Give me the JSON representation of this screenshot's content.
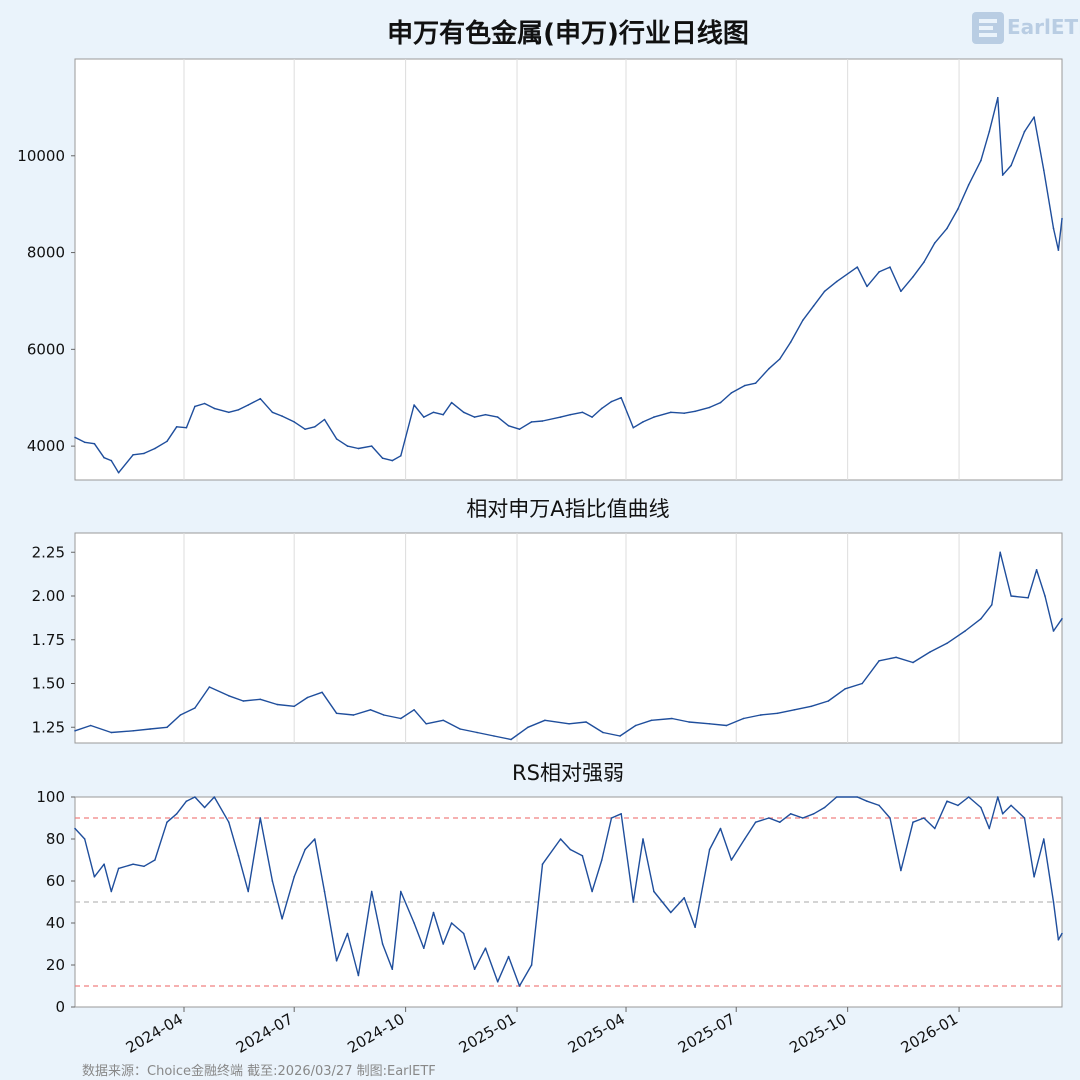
{
  "header": {
    "title": "申万有色金属(申万)行业日线图",
    "logo_text": "EarlETF"
  },
  "footer": {
    "source": "数据来源：Choice金融终端 截至:2026/03/27 制图:EarlETF"
  },
  "colors": {
    "line": "#1f4e9c",
    "background": "#eaf3fb",
    "panel": "#ffffff",
    "grid": "#dddddd",
    "ref_red": "#f08080",
    "ref_gray": "#bbbbbb"
  },
  "chart_data": [
    {
      "type": "line",
      "title": "申万有色金属(申万)行业日线图",
      "x_range": [
        "2024-01-02",
        "2026-03-27"
      ],
      "xticks": [
        "2024-04",
        "2024-07",
        "2024-10",
        "2025-01",
        "2025-04",
        "2025-07",
        "2025-10",
        "2026-01"
      ],
      "ylim": [
        3300,
        12000
      ],
      "yticks": [
        4000,
        6000,
        8000,
        10000
      ],
      "grid": "vertical",
      "series": [
        {
          "x": [
            "2024-01-02",
            "2024-01-10",
            "2024-01-18",
            "2024-01-26",
            "2024-02-01",
            "2024-02-07",
            "2024-02-19",
            "2024-02-28",
            "2024-03-08",
            "2024-03-18",
            "2024-03-26",
            "2024-04-03",
            "2024-04-10",
            "2024-04-18",
            "2024-04-26",
            "2024-05-08",
            "2024-05-16",
            "2024-05-24",
            "2024-06-03",
            "2024-06-13",
            "2024-06-21",
            "2024-07-01",
            "2024-07-10",
            "2024-07-18",
            "2024-07-26",
            "2024-08-05",
            "2024-08-14",
            "2024-08-23",
            "2024-09-03",
            "2024-09-12",
            "2024-09-20",
            "2024-09-27",
            "2024-10-08",
            "2024-10-16",
            "2024-10-24",
            "2024-11-01",
            "2024-11-08",
            "2024-11-18",
            "2024-11-27",
            "2024-12-06",
            "2024-12-16",
            "2024-12-25",
            "2025-01-03",
            "2025-01-13",
            "2025-01-22",
            "2025-02-06",
            "2025-02-14",
            "2025-02-24",
            "2025-03-04",
            "2025-03-12",
            "2025-03-20",
            "2025-03-28",
            "2025-04-07",
            "2025-04-15",
            "2025-04-24",
            "2025-05-08",
            "2025-05-19",
            "2025-05-28",
            "2025-06-09",
            "2025-06-18",
            "2025-06-27",
            "2025-07-08",
            "2025-07-17",
            "2025-07-28",
            "2025-08-06",
            "2025-08-15",
            "2025-08-25",
            "2025-09-03",
            "2025-09-12",
            "2025-09-22",
            "2025-10-09",
            "2025-10-17",
            "2025-10-27",
            "2025-11-05",
            "2025-11-14",
            "2025-11-24",
            "2025-12-03",
            "2025-12-12",
            "2025-12-22",
            "2025-12-31",
            "2026-01-09",
            "2026-01-19",
            "2026-01-26",
            "2026-02-02",
            "2026-02-06",
            "2026-02-13",
            "2026-02-24",
            "2026-03-04",
            "2026-03-12",
            "2026-03-20",
            "2026-03-24",
            "2026-03-27"
          ],
          "values": [
            4180,
            4080,
            4050,
            3760,
            3700,
            3450,
            3820,
            3850,
            3950,
            4100,
            4400,
            4380,
            4820,
            4880,
            4780,
            4700,
            4750,
            4850,
            4980,
            4700,
            4620,
            4500,
            4350,
            4400,
            4550,
            4150,
            4000,
            3950,
            4000,
            3750,
            3700,
            3800,
            4850,
            4600,
            4700,
            4650,
            4900,
            4700,
            4600,
            4650,
            4600,
            4420,
            4350,
            4500,
            4520,
            4600,
            4650,
            4700,
            4600,
            4780,
            4920,
            5000,
            4380,
            4500,
            4600,
            4700,
            4680,
            4720,
            4800,
            4900,
            5100,
            5250,
            5300,
            5600,
            5800,
            6150,
            6600,
            6900,
            7200,
            7400,
            7700,
            7300,
            7600,
            7700,
            7200,
            7500,
            7800,
            8200,
            8500,
            8900,
            9400,
            9900,
            10500,
            11200,
            9600,
            9800,
            10500,
            10800,
            9700,
            8500,
            8050,
            8700
          ]
        }
      ]
    },
    {
      "type": "line",
      "title": "相对申万A指比值曲线",
      "x_range": [
        "2024-01-02",
        "2026-03-27"
      ],
      "xticks": [
        "2024-04",
        "2024-07",
        "2024-10",
        "2025-01",
        "2025-04",
        "2025-07",
        "2025-10",
        "2026-01"
      ],
      "ylim": [
        1.16,
        2.36
      ],
      "yticks": [
        1.25,
        1.5,
        1.75,
        2.0,
        2.25
      ],
      "grid": "vertical",
      "series": [
        {
          "x": [
            "2024-01-02",
            "2024-01-15",
            "2024-02-01",
            "2024-02-19",
            "2024-03-04",
            "2024-03-18",
            "2024-03-29",
            "2024-04-10",
            "2024-04-22",
            "2024-05-08",
            "2024-05-20",
            "2024-06-03",
            "2024-06-17",
            "2024-07-01",
            "2024-07-12",
            "2024-07-24",
            "2024-08-05",
            "2024-08-19",
            "2024-09-02",
            "2024-09-13",
            "2024-09-27",
            "2024-10-08",
            "2024-10-18",
            "2024-11-01",
            "2024-11-15",
            "2024-11-29",
            "2024-12-13",
            "2024-12-27",
            "2025-01-10",
            "2025-01-24",
            "2025-02-13",
            "2025-02-27",
            "2025-03-13",
            "2025-03-27",
            "2025-04-09",
            "2025-04-22",
            "2025-05-09",
            "2025-05-23",
            "2025-06-09",
            "2025-06-23",
            "2025-07-07",
            "2025-07-21",
            "2025-08-04",
            "2025-08-18",
            "2025-09-01",
            "2025-09-15",
            "2025-09-29",
            "2025-10-13",
            "2025-10-27",
            "2025-11-10",
            "2025-11-24",
            "2025-12-08",
            "2025-12-22",
            "2026-01-06",
            "2026-01-19",
            "2026-01-28",
            "2026-02-04",
            "2026-02-13",
            "2026-02-27",
            "2026-03-06",
            "2026-03-13",
            "2026-03-20",
            "2026-03-27"
          ],
          "values": [
            1.23,
            1.26,
            1.22,
            1.23,
            1.24,
            1.25,
            1.32,
            1.36,
            1.48,
            1.43,
            1.4,
            1.41,
            1.38,
            1.37,
            1.42,
            1.45,
            1.33,
            1.32,
            1.35,
            1.32,
            1.3,
            1.35,
            1.27,
            1.29,
            1.24,
            1.22,
            1.2,
            1.18,
            1.25,
            1.29,
            1.27,
            1.28,
            1.22,
            1.2,
            1.26,
            1.29,
            1.3,
            1.28,
            1.27,
            1.26,
            1.3,
            1.32,
            1.33,
            1.35,
            1.37,
            1.4,
            1.47,
            1.5,
            1.63,
            1.65,
            1.62,
            1.68,
            1.73,
            1.8,
            1.87,
            1.95,
            2.25,
            2.0,
            1.99,
            2.15,
            2.0,
            1.8,
            1.87
          ]
        }
      ]
    },
    {
      "type": "line",
      "title": "RS相对强弱",
      "x_range": [
        "2024-01-02",
        "2026-03-27"
      ],
      "xticks": [
        "2024-04",
        "2024-07",
        "2024-10",
        "2025-01",
        "2025-04",
        "2025-07",
        "2025-10",
        "2026-01"
      ],
      "ylim": [
        0,
        100
      ],
      "yticks": [
        0,
        20,
        40,
        60,
        80,
        100
      ],
      "reference_lines": [
        90,
        50,
        10
      ],
      "grid": "none",
      "series": [
        {
          "x": [
            "2024-01-02",
            "2024-01-10",
            "2024-01-18",
            "2024-01-26",
            "2024-02-01",
            "2024-02-07",
            "2024-02-19",
            "2024-02-28",
            "2024-03-08",
            "2024-03-18",
            "2024-03-26",
            "2024-04-03",
            "2024-04-10",
            "2024-04-18",
            "2024-04-26",
            "2024-05-08",
            "2024-05-16",
            "2024-05-24",
            "2024-06-03",
            "2024-06-13",
            "2024-06-21",
            "2024-07-01",
            "2024-07-10",
            "2024-07-18",
            "2024-07-26",
            "2024-08-05",
            "2024-08-14",
            "2024-08-23",
            "2024-09-03",
            "2024-09-12",
            "2024-09-20",
            "2024-09-27",
            "2024-10-08",
            "2024-10-16",
            "2024-10-24",
            "2024-11-01",
            "2024-11-08",
            "2024-11-18",
            "2024-11-27",
            "2024-12-06",
            "2024-12-16",
            "2024-12-25",
            "2025-01-03",
            "2025-01-13",
            "2025-01-22",
            "2025-02-06",
            "2025-02-14",
            "2025-02-24",
            "2025-03-04",
            "2025-03-12",
            "2025-03-20",
            "2025-03-28",
            "2025-04-07",
            "2025-04-15",
            "2025-04-24",
            "2025-05-08",
            "2025-05-19",
            "2025-05-28",
            "2025-06-09",
            "2025-06-18",
            "2025-06-27",
            "2025-07-08",
            "2025-07-17",
            "2025-07-28",
            "2025-08-06",
            "2025-08-15",
            "2025-08-25",
            "2025-09-03",
            "2025-09-12",
            "2025-09-22",
            "2025-10-09",
            "2025-10-17",
            "2025-10-27",
            "2025-11-05",
            "2025-11-14",
            "2025-11-24",
            "2025-12-03",
            "2025-12-12",
            "2025-12-22",
            "2025-12-31",
            "2026-01-09",
            "2026-01-19",
            "2026-01-26",
            "2026-02-02",
            "2026-02-06",
            "2026-02-13",
            "2026-02-24",
            "2026-03-04",
            "2026-03-12",
            "2026-03-20",
            "2026-03-24",
            "2026-03-27"
          ],
          "values": [
            85,
            80,
            62,
            68,
            55,
            66,
            68,
            67,
            70,
            88,
            92,
            98,
            100,
            95,
            100,
            88,
            72,
            55,
            90,
            60,
            42,
            62,
            75,
            80,
            55,
            22,
            35,
            15,
            55,
            30,
            18,
            55,
            40,
            28,
            45,
            30,
            40,
            35,
            18,
            28,
            12,
            24,
            10,
            20,
            68,
            80,
            75,
            72,
            55,
            70,
            90,
            92,
            50,
            80,
            55,
            45,
            52,
            38,
            75,
            85,
            70,
            80,
            88,
            90,
            88,
            92,
            90,
            92,
            95,
            100,
            100,
            98,
            96,
            90,
            65,
            88,
            90,
            85,
            98,
            96,
            100,
            95,
            85,
            100,
            92,
            96,
            90,
            62,
            80,
            50,
            32,
            35
          ]
        }
      ]
    }
  ]
}
